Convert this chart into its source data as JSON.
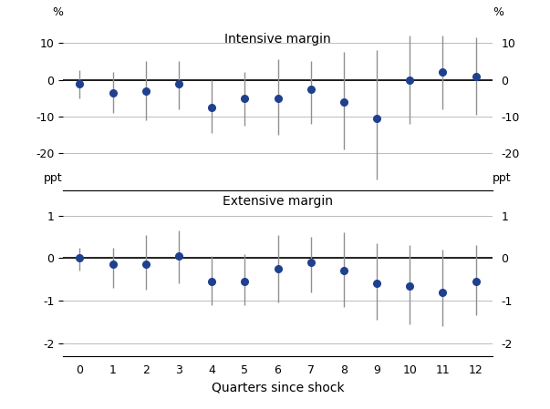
{
  "quarters": [
    0,
    1,
    2,
    3,
    4,
    5,
    6,
    7,
    8,
    9,
    10,
    11,
    12
  ],
  "intensive_center": [
    -1.0,
    -3.5,
    -3.0,
    -1.0,
    -7.5,
    -5.0,
    -5.0,
    -2.5,
    -6.0,
    -10.5,
    0.0,
    2.0,
    1.0
  ],
  "intensive_upper": [
    2.5,
    2.0,
    5.0,
    5.0,
    0.0,
    2.0,
    5.5,
    5.0,
    7.5,
    8.0,
    12.0,
    12.0,
    11.5
  ],
  "intensive_lower": [
    -5.0,
    -9.0,
    -11.0,
    -8.0,
    -14.5,
    -12.5,
    -15.0,
    -12.0,
    -19.0,
    -27.0,
    -12.0,
    -8.0,
    -9.5
  ],
  "extensive_center": [
    0.0,
    -0.15,
    -0.15,
    0.05,
    -0.55,
    -0.55,
    -0.25,
    -0.1,
    -0.3,
    -0.6,
    -0.65,
    -0.8,
    -0.55
  ],
  "extensive_upper": [
    0.25,
    0.25,
    0.55,
    0.65,
    0.05,
    0.1,
    0.55,
    0.5,
    0.6,
    0.35,
    0.3,
    0.2,
    0.3
  ],
  "extensive_lower": [
    -0.3,
    -0.7,
    -0.75,
    -0.6,
    -1.1,
    -1.1,
    -1.05,
    -0.8,
    -1.15,
    -1.45,
    -1.55,
    -1.6,
    -1.35
  ],
  "dot_color": "#1f3f8f",
  "errorbar_color": "#909090",
  "zeroline_color": "#000000",
  "gridline_color": "#bbbbbb",
  "intensive_title": "Intensive margin",
  "extensive_title": "Extensive margin",
  "xlabel": "Quarters since shock",
  "left_label_top": "%",
  "right_label_top": "%",
  "left_label_bottom": "ppt",
  "right_label_bottom": "ppt",
  "intensive_yticks": [
    -20,
    -10,
    0,
    10
  ],
  "intensive_ylim": [
    -30,
    15
  ],
  "extensive_yticks": [
    -2,
    -1,
    0,
    1
  ],
  "extensive_ylim": [
    -2.3,
    1.6
  ]
}
